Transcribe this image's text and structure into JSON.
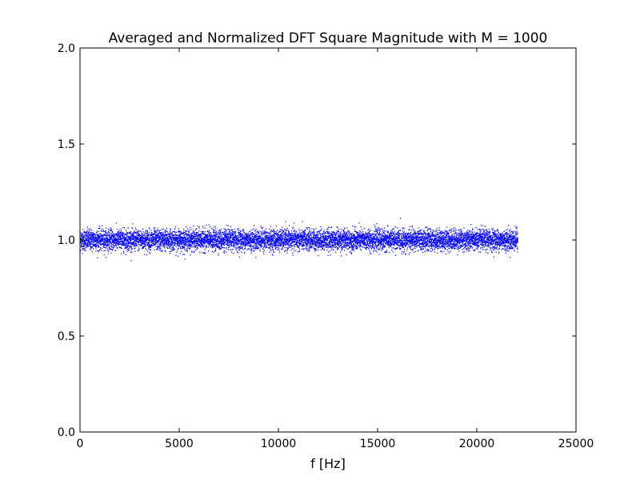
{
  "chart_data": {
    "type": "scatter",
    "title": "Averaged and Normalized DFT Square Magnitude with M = 1000",
    "xlabel": "f [Hz]",
    "ylabel": "",
    "xlim": [
      0,
      25000
    ],
    "ylim": [
      0.0,
      2.0
    ],
    "xticks": [
      "0",
      "5000",
      "10000",
      "15000",
      "20000",
      "25000"
    ],
    "yticks": [
      "0.0",
      "0.5",
      "1.0",
      "1.5",
      "2.0"
    ],
    "grid": false,
    "legend": "none",
    "series": [
      {
        "x_range": [
          0,
          22050
        ],
        "center": 1.0,
        "typical_spread": [
          0.94,
          1.06
        ],
        "extremes": [
          0.88,
          1.13
        ],
        "color": "#0000ff",
        "marker": "dot"
      }
    ]
  }
}
